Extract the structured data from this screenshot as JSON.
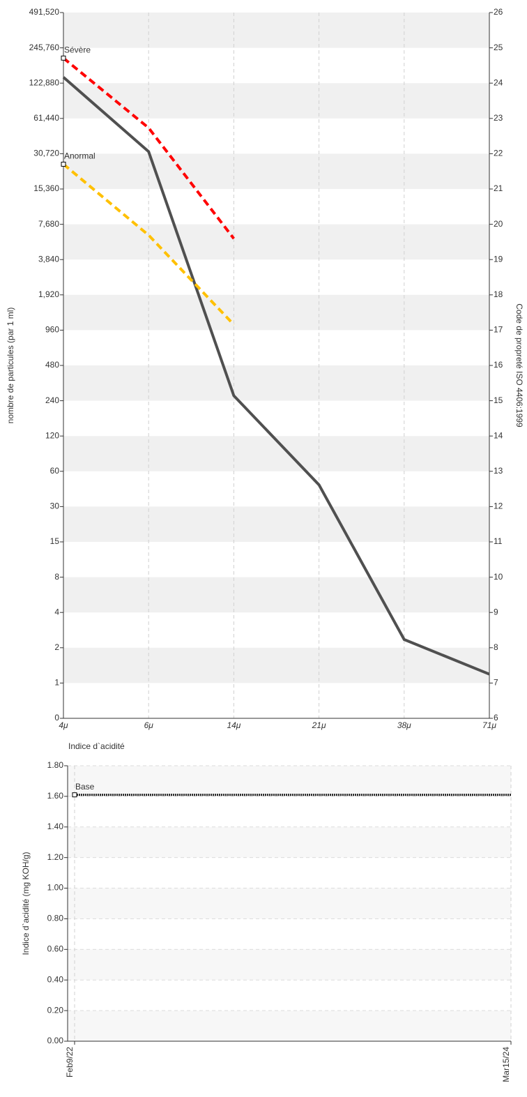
{
  "chart_data": [
    {
      "type": "line",
      "categories": [
        "4μ",
        "6μ",
        "14μ",
        "21μ",
        "38μ",
        "71μ"
      ],
      "ylabel": "nombre de particules (par 1 ml)",
      "y2label": "Code de propreté ISO 4406:1999",
      "ylim": [
        0,
        491520
      ],
      "yticks": [
        0,
        1,
        2,
        4,
        8,
        15,
        30,
        60,
        120,
        240,
        480,
        960,
        {
          "value": 1920,
          "label": "1,920"
        },
        {
          "value": 3840,
          "label": "3,840"
        },
        {
          "value": 7680,
          "label": "7,680"
        },
        {
          "value": 15360,
          "label": "15,360"
        },
        {
          "value": 30720,
          "label": "30,720"
        },
        {
          "value": 61440,
          "label": "61,440"
        },
        {
          "value": 122880,
          "label": "122,880"
        },
        {
          "value": 245760,
          "label": "245,760"
        },
        {
          "value": 491520,
          "label": "491,520"
        }
      ],
      "y2lim": [
        6,
        26
      ],
      "y2ticks": [
        6,
        7,
        8,
        9,
        10,
        11,
        12,
        13,
        14,
        15,
        16,
        17,
        18,
        19,
        20,
        21,
        22,
        23,
        24,
        25,
        26
      ],
      "grid": true,
      "series": [
        {
          "color": "#505050",
          "dash": false,
          "values": [
            138000,
            32000,
            265,
            46,
            2.35,
            1.19
          ]
        },
        {
          "name": "Sévère",
          "color": "#ff0000",
          "dash": true,
          "values": [
            201000,
            51000,
            5800,
            null,
            null,
            null
          ]
        },
        {
          "name": "Anormal",
          "color": "#ffc000",
          "dash": true,
          "values": [
            25000,
            6200,
            1070,
            null,
            null,
            null
          ]
        }
      ]
    },
    {
      "type": "line",
      "title": "Indice d`acidité",
      "categories": [
        "Feb9/22",
        "Mar15/24"
      ],
      "ylabel": "Indice d`acidité (mg KOH/g)",
      "ylim": [
        0,
        1.8
      ],
      "yticks": [
        {
          "value": 0,
          "label": "0.00"
        },
        {
          "value": 0.2,
          "label": "0.20"
        },
        {
          "value": 0.4,
          "label": "0.40"
        },
        {
          "value": 0.6,
          "label": "0.60"
        },
        {
          "value": 0.8,
          "label": "0.80"
        },
        {
          "value": 1,
          "label": "1.00"
        },
        {
          "value": 1.2,
          "label": "1.20"
        },
        {
          "value": 1.4,
          "label": "1.40"
        },
        {
          "value": 1.6,
          "label": "1.60"
        },
        {
          "value": 1.8,
          "label": "1.80"
        }
      ],
      "grid": true,
      "series": [
        {
          "name": "Base",
          "color": "#222222",
          "dotted": true,
          "values": [
            1.61,
            1.61
          ]
        }
      ]
    }
  ]
}
